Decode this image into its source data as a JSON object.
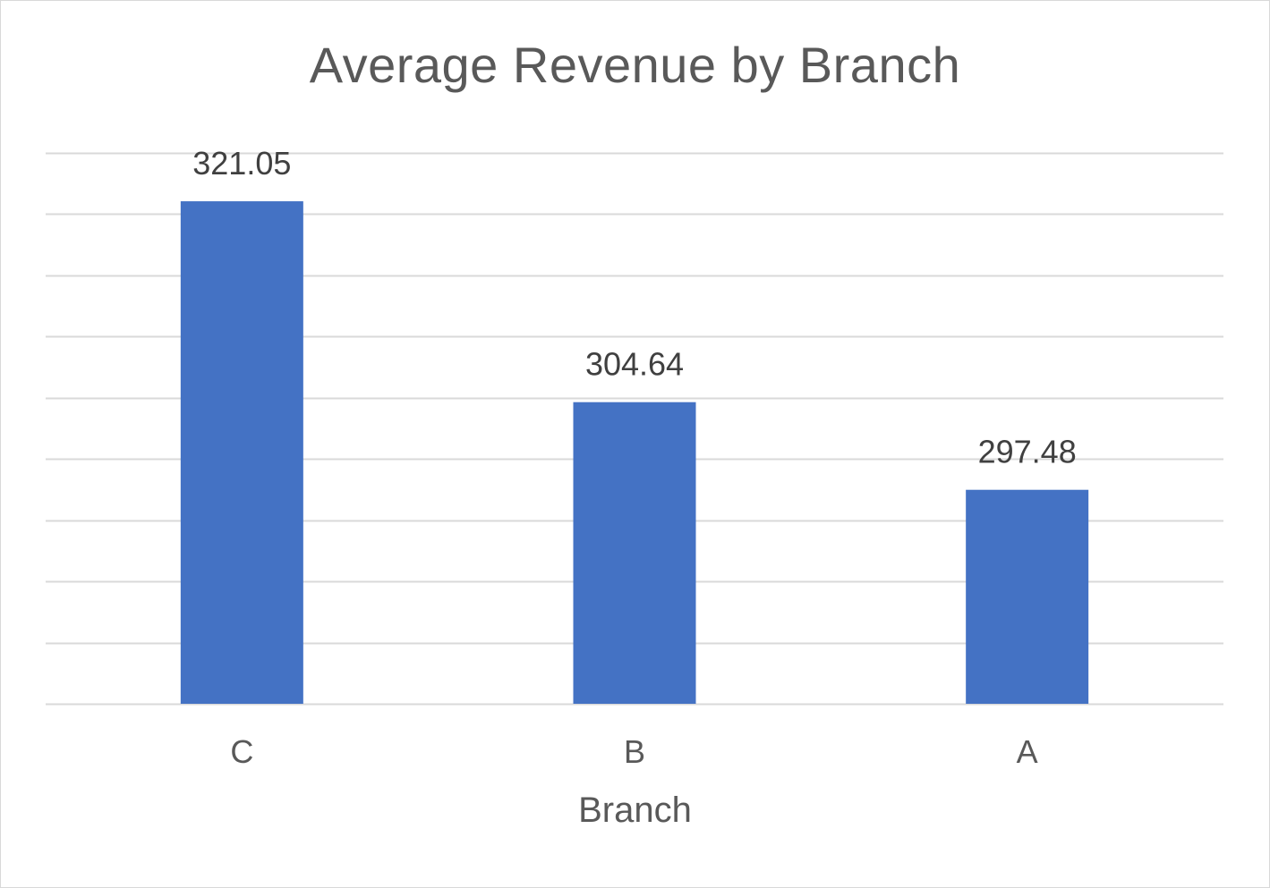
{
  "chart_data": {
    "type": "bar",
    "title": "Average Revenue by Branch",
    "xlabel": "Branch",
    "ylabel": "",
    "categories": [
      "C",
      "B",
      "A"
    ],
    "values": [
      321.05,
      304.64,
      297.48
    ],
    "data_labels": [
      "321.05",
      "304.64",
      "297.48"
    ],
    "ylim": [
      280,
      325
    ],
    "gridlines": true,
    "y_tick_labels_shown": false,
    "legend": "none",
    "colors": {
      "bar": "#4472C4",
      "grid": "#D9D9D9",
      "text": "#595959",
      "data_label": "#404040"
    }
  }
}
